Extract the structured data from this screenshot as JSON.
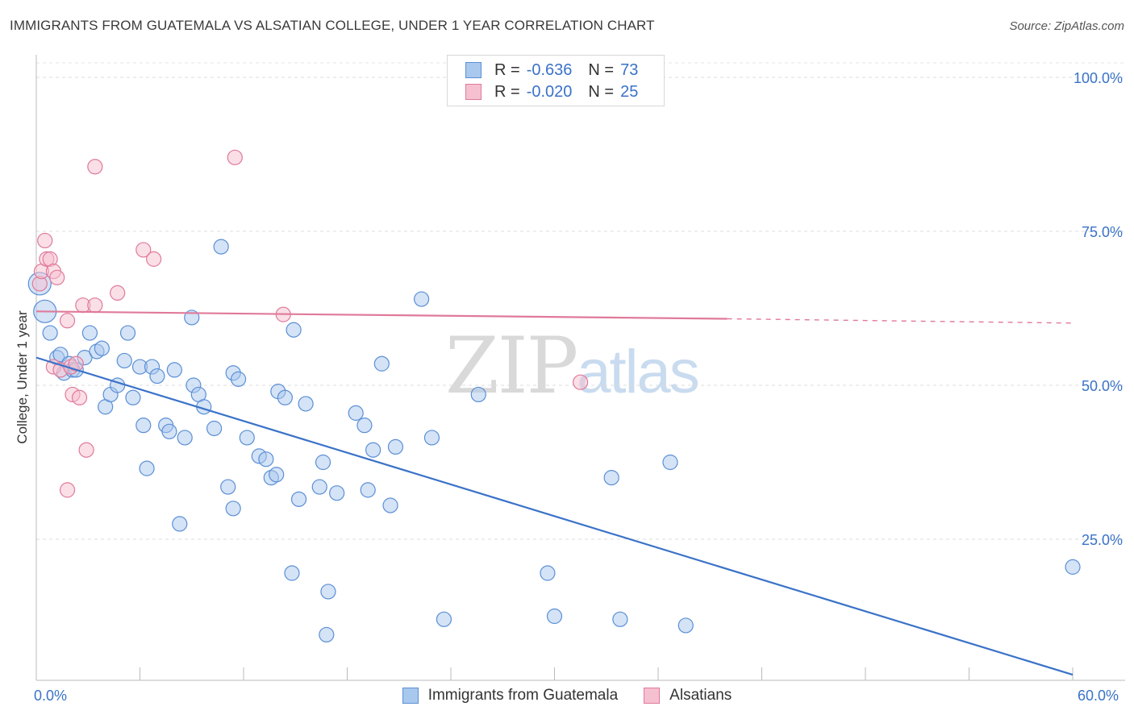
{
  "header": {
    "title": "IMMIGRANTS FROM GUATEMALA VS ALSATIAN COLLEGE, UNDER 1 YEAR CORRELATION CHART",
    "source": "Source: ZipAtlas.com"
  },
  "watermark": {
    "zip": "ZIP",
    "atlas": "atlas"
  },
  "stats": [
    {
      "r_label": "R =",
      "r_value": "-0.636",
      "n_label": "N =",
      "n_value": "73",
      "color": "#a9c8ee",
      "border": "#5b8fd6"
    },
    {
      "r_label": "R =",
      "r_value": "-0.020",
      "n_label": "N =",
      "n_value": "25",
      "color": "#f5c0d0",
      "border": "#e07a9a"
    }
  ],
  "legend": [
    {
      "label": "Immigrants from Guatemala",
      "color": "#a9c8ee",
      "border": "#5b8fd6"
    },
    {
      "label": "Alsatians",
      "color": "#f5c0d0",
      "border": "#e07a9a"
    }
  ],
  "axes": {
    "x_tick_labels": [
      "0.0%",
      "60.0%"
    ],
    "y_tick_labels": [
      "100.0%",
      "75.0%",
      "50.0%",
      "25.0%"
    ],
    "ylabel": "College, Under 1 year"
  },
  "chart_data": {
    "type": "scatter",
    "title": "IMMIGRANTS FROM GUATEMALA VS ALSATIAN COLLEGE, UNDER 1 YEAR CORRELATION CHART",
    "xlabel": "",
    "ylabel": "College, Under 1 year",
    "xlim": [
      0,
      60
    ],
    "ylim": [
      0,
      104
    ],
    "grid": "horizontal dashed",
    "legend_position": "bottom",
    "series": [
      {
        "name": "Immigrants from Guatemala",
        "color": "#a9c8ee",
        "edge": "#5b8fd6",
        "trend": {
          "x0": 0,
          "y0": 54.5,
          "x1": 60,
          "y1": 3.0,
          "color": "#3a72c8"
        },
        "points": [
          [
            0.2,
            66.5
          ],
          [
            0.5,
            62
          ],
          [
            0.8,
            58.5
          ],
          [
            1.2,
            54.5
          ],
          [
            1.4,
            55
          ],
          [
            1.6,
            52
          ],
          [
            1.9,
            53.5
          ],
          [
            2.1,
            52.5
          ],
          [
            2.3,
            52.5
          ],
          [
            2.8,
            54.5
          ],
          [
            3.1,
            58.5
          ],
          [
            3.5,
            55.5
          ],
          [
            3.8,
            56
          ],
          [
            4.0,
            46.5
          ],
          [
            4.3,
            48.5
          ],
          [
            4.7,
            50
          ],
          [
            5.1,
            54
          ],
          [
            5.3,
            58.5
          ],
          [
            5.6,
            48
          ],
          [
            6.0,
            53
          ],
          [
            6.2,
            43.5
          ],
          [
            6.4,
            36.5
          ],
          [
            6.7,
            53
          ],
          [
            7.0,
            51.5
          ],
          [
            7.5,
            43.5
          ],
          [
            7.7,
            42.5
          ],
          [
            8.0,
            52.5
          ],
          [
            8.3,
            27.5
          ],
          [
            8.6,
            41.5
          ],
          [
            9.0,
            61
          ],
          [
            9.1,
            50
          ],
          [
            9.4,
            48.5
          ],
          [
            9.7,
            46.5
          ],
          [
            10.3,
            43
          ],
          [
            10.7,
            72.5
          ],
          [
            11.1,
            33.5
          ],
          [
            11.4,
            52
          ],
          [
            11.7,
            51
          ],
          [
            11.4,
            30
          ],
          [
            12.2,
            41.5
          ],
          [
            12.9,
            38.5
          ],
          [
            13.3,
            38
          ],
          [
            13.6,
            35
          ],
          [
            13.9,
            35.5
          ],
          [
            14.0,
            49
          ],
          [
            14.4,
            48
          ],
          [
            14.8,
            19.5
          ],
          [
            14.9,
            59
          ],
          [
            15.2,
            31.5
          ],
          [
            15.6,
            47
          ],
          [
            16.4,
            33.5
          ],
          [
            16.6,
            37.5
          ],
          [
            16.8,
            9.5
          ],
          [
            16.9,
            16.5
          ],
          [
            17.4,
            32.5
          ],
          [
            18.5,
            45.5
          ],
          [
            19.0,
            43.5
          ],
          [
            19.2,
            33
          ],
          [
            19.5,
            39.5
          ],
          [
            20.0,
            53.5
          ],
          [
            20.5,
            30.5
          ],
          [
            20.8,
            40
          ],
          [
            22.3,
            64
          ],
          [
            22.9,
            41.5
          ],
          [
            23.6,
            12
          ],
          [
            25.6,
            48.5
          ],
          [
            29.6,
            19.5
          ],
          [
            30.0,
            12.5
          ],
          [
            33.3,
            35
          ],
          [
            33.8,
            12
          ],
          [
            36.7,
            37.5
          ],
          [
            37.6,
            11
          ],
          [
            60.0,
            20.5
          ]
        ]
      },
      {
        "name": "Alsatians",
        "color": "#f5c0d0",
        "edge": "#e07a9a",
        "trend": {
          "x0": 0,
          "y0": 62.0,
          "x1": 40,
          "y1": 60.8,
          "x2": 60,
          "y2": 60.1,
          "color": "#e07a9a"
        },
        "points": [
          [
            0.2,
            66.5
          ],
          [
            0.3,
            68.5
          ],
          [
            0.5,
            73.5
          ],
          [
            0.6,
            70.5
          ],
          [
            0.8,
            70.5
          ],
          [
            1.0,
            68.5
          ],
          [
            1.2,
            67.5
          ],
          [
            1.0,
            53
          ],
          [
            1.4,
            52.5
          ],
          [
            1.8,
            60.5
          ],
          [
            2.0,
            53
          ],
          [
            2.1,
            48.5
          ],
          [
            2.5,
            48
          ],
          [
            2.7,
            63
          ],
          [
            2.9,
            39.5
          ],
          [
            1.8,
            33
          ],
          [
            3.4,
            85.5
          ],
          [
            3.4,
            63
          ],
          [
            4.7,
            65
          ],
          [
            6.2,
            72
          ],
          [
            6.8,
            70.5
          ],
          [
            11.5,
            87
          ],
          [
            14.3,
            61.5
          ],
          [
            31.5,
            50.5
          ],
          [
            2.3,
            53.5
          ]
        ]
      }
    ]
  }
}
